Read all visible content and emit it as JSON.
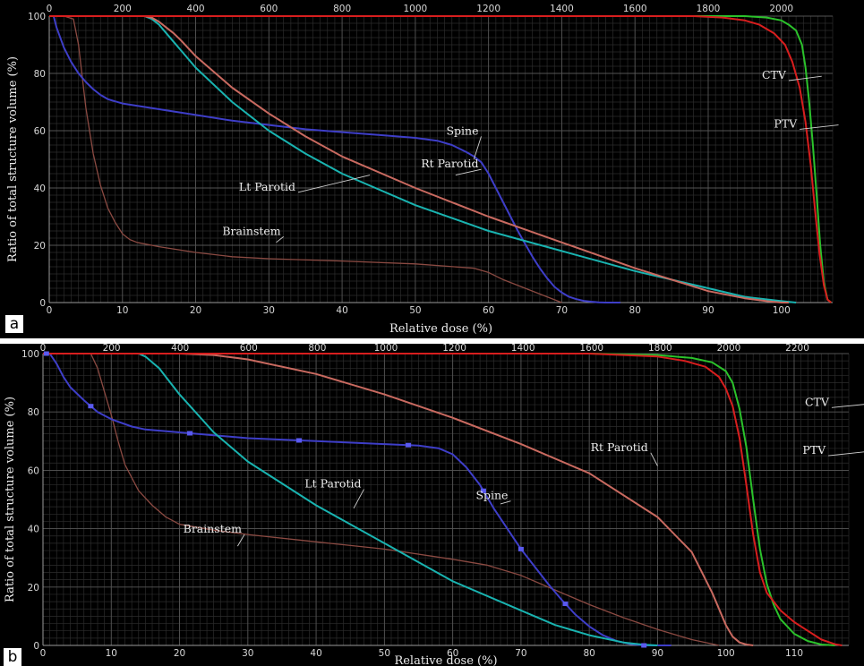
{
  "chart_data": [
    {
      "type": "line",
      "panel_label": "a",
      "xlabel": "Relative dose (%)",
      "ylabel": "Ratio of total structure volume (%)",
      "xlim": [
        0,
        107
      ],
      "ylim": [
        0,
        100
      ],
      "x_ticks": [
        0,
        10,
        20,
        30,
        40,
        50,
        60,
        70,
        80,
        90,
        100
      ],
      "y_ticks": [
        0,
        20,
        40,
        60,
        80,
        100
      ],
      "top_xlim": [
        0,
        2140
      ],
      "top_ticks": [
        0,
        200,
        400,
        600,
        800,
        1000,
        1200,
        1400,
        1600,
        1800,
        2000
      ],
      "grid": true,
      "series": [
        {
          "name": "Brainstem",
          "color": "#8b4a42",
          "x": [
            0,
            2,
            3.3,
            4,
            5,
            6,
            7,
            8,
            9,
            10,
            11,
            12,
            15,
            20,
            25,
            30,
            40,
            50,
            58,
            60,
            62,
            65,
            68,
            70
          ],
          "y": [
            100,
            100,
            99,
            90,
            68,
            52,
            41,
            33,
            28,
            24,
            22,
            21,
            19.5,
            17.5,
            16,
            15.3,
            14.5,
            13.5,
            12,
            10.5,
            8,
            5,
            2,
            0
          ]
        },
        {
          "name": "Spine",
          "color": "#3e3ec8",
          "x": [
            0,
            0.6,
            1,
            2,
            3,
            4,
            5,
            6,
            7,
            8,
            10,
            15,
            20,
            25,
            30,
            35,
            40,
            45,
            50,
            53,
            55,
            57,
            58,
            59,
            60,
            61,
            62,
            63,
            64,
            65,
            66,
            67,
            68,
            69,
            70,
            71,
            72,
            73,
            74,
            75,
            76,
            77,
            78
          ],
          "y": [
            100,
            100,
            96,
            89,
            84,
            80,
            77,
            74.5,
            72.5,
            71,
            69.5,
            67.5,
            65.5,
            63.5,
            62,
            60.5,
            59.5,
            58.5,
            57.5,
            56.5,
            55,
            52.5,
            51,
            49,
            45,
            40,
            35,
            30,
            25,
            20.5,
            16,
            12,
            8.5,
            5.5,
            3.5,
            2,
            1.2,
            0.6,
            0.3,
            0.1,
            0,
            0,
            0
          ]
        },
        {
          "name": "Lt Parotid",
          "color": "#19b3b0",
          "x": [
            0,
            5,
            10,
            13,
            14,
            15,
            16,
            17,
            18,
            20,
            25,
            30,
            35,
            40,
            50,
            60,
            70,
            80,
            90,
            95,
            100,
            102
          ],
          "y": [
            100,
            100,
            100,
            100,
            99,
            97,
            94,
            91,
            88,
            82,
            70,
            60,
            52,
            45,
            34,
            25,
            18,
            11,
            5,
            2,
            0.5,
            0
          ]
        },
        {
          "name": "Rt Parotid",
          "color": "#c96a60",
          "x": [
            0,
            5,
            10,
            13,
            14,
            15,
            16,
            17,
            18,
            20,
            25,
            30,
            35,
            40,
            50,
            60,
            70,
            80,
            90,
            95,
            98,
            100,
            101
          ],
          "y": [
            100,
            100,
            100,
            100,
            99.5,
            98,
            96,
            94,
            91.5,
            86,
            75,
            66,
            58,
            51,
            40,
            30,
            21,
            12,
            4,
            1.5,
            0.5,
            0,
            0
          ]
        },
        {
          "name": "CTV",
          "color": "#2bc22b",
          "x": [
            0,
            20,
            40,
            60,
            80,
            90,
            95,
            98,
            100,
            101,
            102,
            102.8,
            103.3,
            103.8,
            104.3,
            104.8,
            105.3,
            105.8,
            106.3,
            106.8
          ],
          "y": [
            100,
            100,
            100,
            100,
            100,
            100,
            100,
            99.5,
            98.5,
            97,
            95,
            90,
            82,
            70,
            55,
            38,
            20,
            7,
            1,
            0
          ]
        },
        {
          "name": "PTV",
          "color": "#d81e1e",
          "x": [
            0,
            20,
            40,
            60,
            80,
            88,
            92,
            95,
            97,
            99,
            100.5,
            101.5,
            102.5,
            103.3,
            104,
            104.6,
            105.2,
            105.8,
            106.3,
            106.8
          ],
          "y": [
            100,
            100,
            100,
            100,
            100,
            100,
            99.5,
            98.5,
            97,
            94,
            90,
            84,
            75,
            63,
            48,
            32,
            17,
            6,
            1,
            0
          ]
        }
      ],
      "annotations": [
        {
          "text": "Spine",
          "x": 59,
          "y": 58,
          "ax": 58,
          "ay": 50
        },
        {
          "text": "Rt Parotid",
          "x": 59,
          "y": 46.5,
          "ax": 55.5,
          "ay": 44.5
        },
        {
          "text": "Lt Parotid",
          "x": 34,
          "y": 38.5,
          "ax": 43.8,
          "ay": 44.5
        },
        {
          "text": "Brainstem",
          "x": 32,
          "y": 23,
          "ax": 31,
          "ay": 21
        },
        {
          "text": "CTV",
          "x": 101,
          "y": 77.5,
          "ax": 105.5,
          "ay": 79
        },
        {
          "text": "PTV",
          "x": 102.5,
          "y": 60.5,
          "ax": 107.8,
          "ay": 62
        }
      ]
    },
    {
      "type": "line",
      "panel_label": "b",
      "xlabel": "Relative dose (%)",
      "ylabel": "Ratio of total structure volume (%)",
      "xlim": [
        0,
        118
      ],
      "ylim": [
        0,
        100
      ],
      "x_ticks": [
        0,
        10,
        20,
        30,
        40,
        50,
        60,
        70,
        80,
        90,
        100,
        110
      ],
      "y_ticks": [
        0,
        20,
        40,
        60,
        80,
        100
      ],
      "top_xlim": [
        0,
        2350
      ],
      "top_ticks": [
        0,
        200,
        400,
        600,
        800,
        1000,
        1200,
        1400,
        1600,
        1800,
        2000,
        2200
      ],
      "grid": true,
      "series": [
        {
          "name": "Brainstem",
          "color": "#8b4a42",
          "x": [
            0,
            5,
            7,
            8,
            9,
            10,
            11,
            12,
            14,
            16,
            18,
            20,
            25,
            30,
            40,
            50,
            60,
            65,
            70,
            75,
            80,
            85,
            90,
            95,
            99
          ],
          "y": [
            100,
            100,
            100,
            95,
            87,
            79,
            70,
            62,
            53,
            48,
            44,
            41.5,
            39.5,
            38,
            35.5,
            33,
            29.5,
            27.5,
            24,
            19,
            14,
            9.5,
            5.5,
            2,
            0
          ]
        },
        {
          "name": "Spine",
          "color": "#3e3ec8",
          "x": [
            0,
            1,
            2,
            3,
            4,
            6,
            8,
            10,
            13,
            15,
            20,
            30,
            40,
            50,
            55,
            58,
            60,
            62,
            64,
            66,
            68,
            70,
            72,
            74,
            76,
            78,
            80,
            82,
            84,
            86,
            88,
            90,
            92
          ],
          "y": [
            100,
            100,
            96.5,
            92,
            88.5,
            84,
            80,
            77.5,
            75,
            74,
            73,
            71,
            70,
            69,
            68.5,
            67.5,
            65.5,
            61,
            55,
            47,
            40,
            33,
            27,
            21,
            15.5,
            10.5,
            6.5,
            3.5,
            1.5,
            0.5,
            0,
            0,
            0
          ]
        },
        {
          "name": "Lt Parotid",
          "color": "#19b3b0",
          "x": [
            0,
            10,
            14,
            15,
            16,
            17,
            18,
            20,
            25,
            30,
            40,
            50,
            60,
            70,
            75,
            80,
            85,
            88,
            90
          ],
          "y": [
            100,
            100,
            100,
            99,
            97,
            95,
            92,
            86,
            73,
            63,
            48,
            35,
            22,
            12,
            7,
            3.5,
            1,
            0.2,
            0
          ]
        },
        {
          "name": "Rt Parotid",
          "color": "#c96a60",
          "x": [
            0,
            20,
            25,
            30,
            40,
            50,
            60,
            70,
            80,
            90,
            95,
            98,
            100,
            101,
            102,
            103,
            104
          ],
          "y": [
            100,
            100,
            99.5,
            98,
            93,
            86,
            78,
            69,
            59,
            44,
            32,
            18,
            7,
            3,
            1,
            0.3,
            0
          ]
        },
        {
          "name": "CTV",
          "color": "#2bc22b",
          "x": [
            0,
            40,
            80,
            90,
            95,
            98,
            100,
            101,
            102,
            103,
            104,
            105,
            106,
            107,
            108,
            110,
            112,
            114,
            116
          ],
          "y": [
            100,
            100,
            100,
            99.5,
            98.5,
            97,
            94,
            90,
            81,
            68,
            50,
            33,
            21,
            14,
            9,
            4,
            1.5,
            0.3,
            0
          ]
        },
        {
          "name": "PTV",
          "color": "#d81e1e",
          "x": [
            0,
            40,
            80,
            90,
            94,
            97,
            99,
            100,
            101,
            102,
            103,
            104,
            105,
            106,
            108,
            110,
            112,
            114,
            116,
            117
          ],
          "y": [
            100,
            100,
            100,
            99,
            97.5,
            95.5,
            92,
            88,
            82,
            71,
            55,
            38,
            25,
            18,
            12,
            8,
            5,
            2,
            0.4,
            0
          ]
        }
      ],
      "markers": [
        {
          "series": "Spine",
          "x": [
            0.5,
            7,
            21.5,
            37.5,
            53.5,
            64.5,
            70,
            76.5,
            88
          ]
        }
      ],
      "annotations": [
        {
          "text": "Rt Parotid",
          "x": 89,
          "y": 66,
          "ax": 90,
          "ay": 61.5
        },
        {
          "text": "Spine",
          "x": 68.5,
          "y": 49.5,
          "ax": 67,
          "ay": 48.5
        },
        {
          "text": "Lt Parotid",
          "x": 47,
          "y": 53.5,
          "ax": 45.5,
          "ay": 47
        },
        {
          "text": "Brainstem",
          "x": 29.5,
          "y": 38,
          "ax": 28.5,
          "ay": 34
        },
        {
          "text": "CTV",
          "x": 115.5,
          "y": 81.5,
          "ax": 122,
          "ay": 83
        },
        {
          "text": "PTV",
          "x": 115,
          "y": 65,
          "ax": 123,
          "ay": 67
        }
      ]
    }
  ]
}
